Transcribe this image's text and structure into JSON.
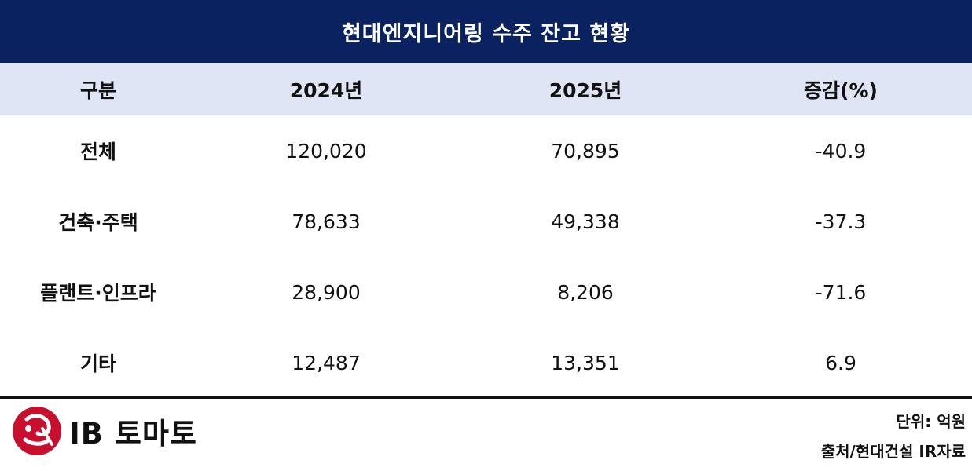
{
  "title": "현대엔지니어링 수주 잔고 현황",
  "table": {
    "headers": [
      "구분",
      "2024년",
      "2025년",
      "증감(%)"
    ],
    "rows": [
      {
        "label": "전체",
        "y2024": "120,020",
        "y2025": "70,895",
        "change": "-40.9"
      },
      {
        "label": "건축·주택",
        "y2024": "78,633",
        "y2025": "49,338",
        "change": "-37.3"
      },
      {
        "label": "플랜트·인프라",
        "y2024": "28,900",
        "y2025": "8,206",
        "change": "-71.6"
      },
      {
        "label": "기타",
        "y2024": "12,487",
        "y2025": "13,351",
        "change": "6.9"
      }
    ]
  },
  "footer": {
    "logo_text": "IB 토마토",
    "unit": "단위: 억원",
    "source": "출처/현대건설 IR자료"
  },
  "colors": {
    "title_bg": "#0b2260",
    "header_bg": "#dfe5f4",
    "logo_red": "#c8102e"
  }
}
